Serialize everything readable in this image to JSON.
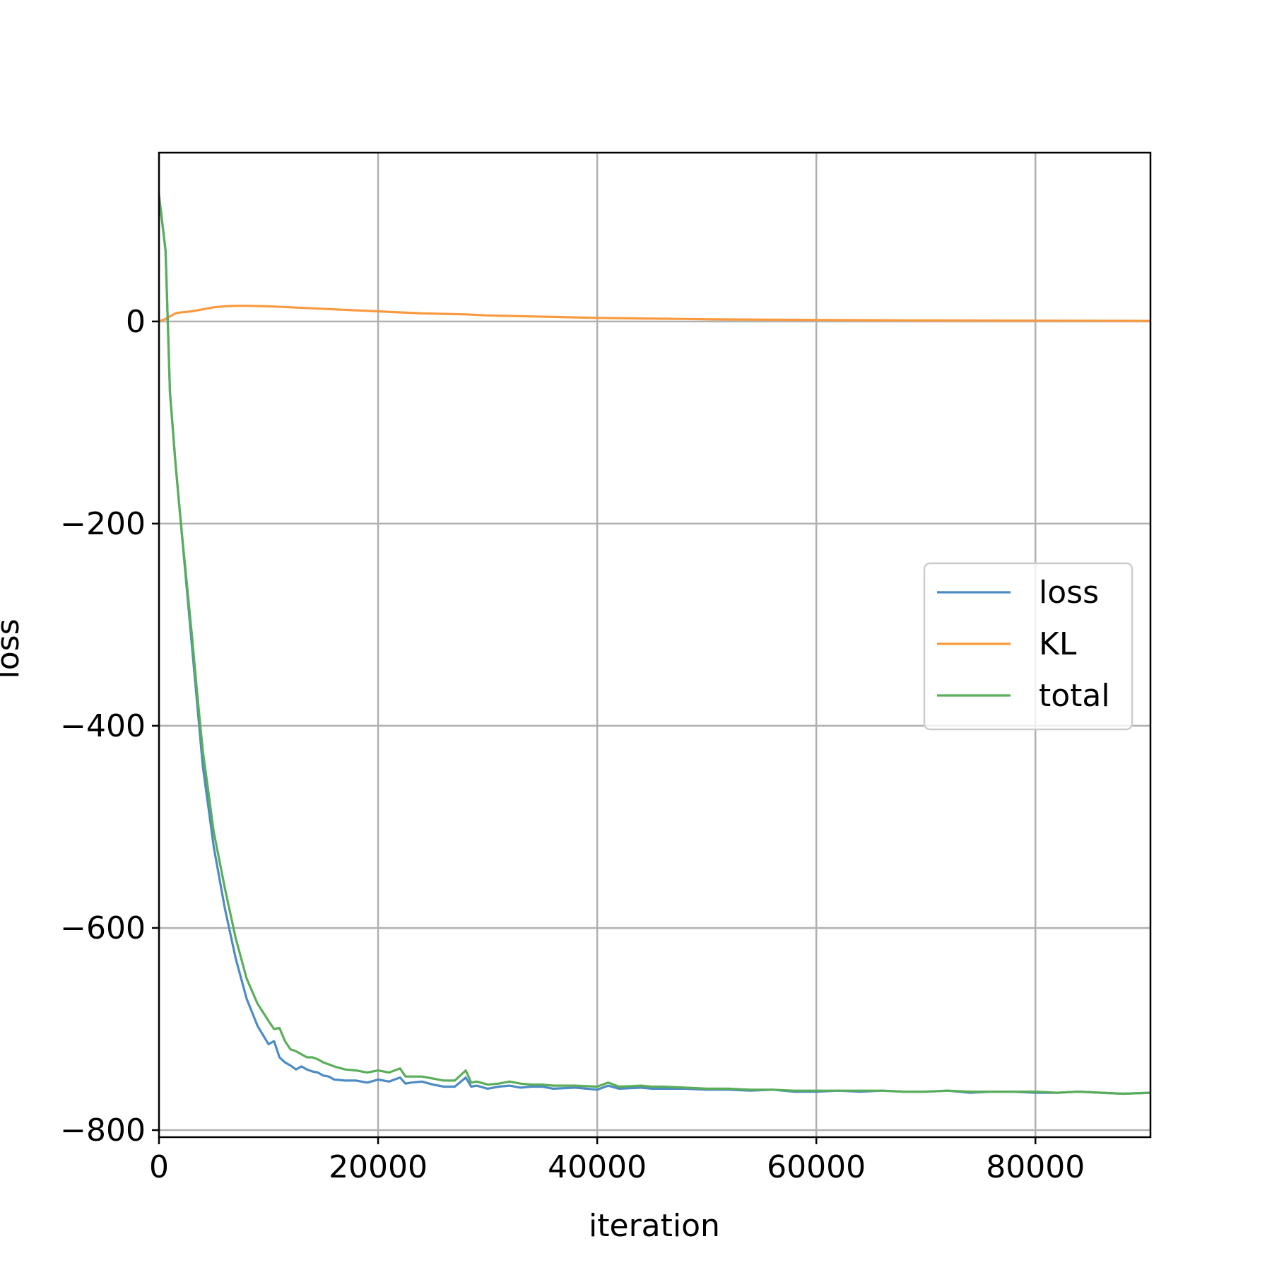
{
  "chart_data": {
    "type": "line",
    "title": "",
    "xlabel": "iteration",
    "ylabel": "loss",
    "xlim": [
      0,
      90500
    ],
    "ylim": [
      -807,
      167
    ],
    "xticks": [
      0,
      20000,
      40000,
      60000,
      80000
    ],
    "yticks": [
      0,
      -200,
      -400,
      -600,
      -800
    ],
    "xtick_labels": [
      "0",
      "20000",
      "40000",
      "60000",
      "80000"
    ],
    "ytick_labels": [
      "0",
      "−200",
      "−400",
      "−600",
      "−800"
    ],
    "grid": true,
    "legend_position": "center-right",
    "series": [
      {
        "name": "loss",
        "color": "#4c8bc3",
        "x": [
          0,
          600,
          1000,
          1500,
          2000,
          2500,
          3000,
          3500,
          4000,
          4500,
          5000,
          6000,
          7000,
          8000,
          9000,
          10000,
          10500,
          11000,
          11500,
          12000,
          12500,
          13000,
          13500,
          14000,
          14500,
          15000,
          15500,
          16000,
          17000,
          18000,
          19000,
          20000,
          21000,
          22000,
          22500,
          23000,
          24000,
          25000,
          26000,
          27000,
          28000,
          28500,
          29000,
          30000,
          31000,
          32000,
          33000,
          34000,
          35000,
          36000,
          38000,
          40000,
          41000,
          42000,
          44000,
          45000,
          46000,
          48000,
          50000,
          52000,
          54000,
          56000,
          58000,
          60000,
          62000,
          64000,
          66000,
          68000,
          70000,
          72000,
          74000,
          76000,
          78000,
          80000,
          82000,
          84000,
          86000,
          88000,
          90500
        ],
        "values": [
          125,
          70,
          -70,
          -140,
          -200,
          -260,
          -320,
          -380,
          -440,
          -480,
          -520,
          -580,
          -630,
          -670,
          -697,
          -715,
          -712,
          -728,
          -733,
          -736,
          -740,
          -737,
          -740,
          -742,
          -743,
          -746,
          -747,
          -750,
          -751,
          -751,
          -753,
          -750,
          -752,
          -748,
          -754,
          -753,
          -752,
          -755,
          -757,
          -757,
          -748,
          -757,
          -756,
          -759,
          -757,
          -756,
          -758,
          -757,
          -757,
          -759,
          -758,
          -760,
          -756,
          -759,
          -758,
          -759,
          -759,
          -759,
          -760,
          -760,
          -761,
          -760,
          -762,
          -762,
          -761,
          -762,
          -761,
          -762,
          -762,
          -761,
          -763,
          -762,
          -762,
          -763,
          -763,
          -762,
          -763,
          -764,
          -763
        ]
      },
      {
        "name": "KL",
        "color": "#f99a40",
        "x": [
          0,
          500,
          1000,
          1500,
          2000,
          3000,
          4000,
          5000,
          6000,
          7000,
          8000,
          10000,
          12000,
          14000,
          16000,
          18000,
          20000,
          22000,
          24000,
          26000,
          28000,
          30000,
          32000,
          34000,
          36000,
          38000,
          40000,
          44000,
          48000,
          52000,
          56000,
          60000,
          64000,
          68000,
          72000,
          76000,
          80000,
          84000,
          88000,
          90500
        ],
        "values": [
          0,
          2,
          5,
          8,
          9,
          10,
          12,
          14,
          15,
          15.5,
          15.5,
          15,
          14,
          13,
          12,
          11,
          10,
          9,
          8,
          7.5,
          7,
          6,
          5.5,
          5,
          4.5,
          4,
          3.5,
          3,
          2.5,
          2,
          1.8,
          1.5,
          1.3,
          1.1,
          1,
          0.9,
          0.8,
          0.7,
          0.6,
          0.5
        ]
      },
      {
        "name": "total",
        "color": "#5aae5a",
        "x": [
          0,
          600,
          1000,
          1500,
          2000,
          2500,
          3000,
          3500,
          4000,
          4500,
          5000,
          6000,
          7000,
          8000,
          9000,
          10000,
          10500,
          11000,
          11500,
          12000,
          12500,
          13000,
          13500,
          14000,
          14500,
          15000,
          15500,
          16000,
          17000,
          18000,
          19000,
          20000,
          21000,
          22000,
          22500,
          23000,
          24000,
          25000,
          26000,
          27000,
          28000,
          28500,
          29000,
          30000,
          31000,
          32000,
          33000,
          34000,
          35000,
          36000,
          38000,
          40000,
          41000,
          42000,
          44000,
          45000,
          46000,
          48000,
          50000,
          52000,
          54000,
          56000,
          58000,
          60000,
          62000,
          64000,
          66000,
          68000,
          70000,
          72000,
          74000,
          76000,
          78000,
          80000,
          82000,
          84000,
          86000,
          88000,
          90500
        ],
        "values": [
          125,
          70,
          -70,
          -140,
          -200,
          -255,
          -310,
          -370,
          -425,
          -465,
          -505,
          -560,
          -610,
          -650,
          -675,
          -692,
          -700,
          -699,
          -712,
          -720,
          -722,
          -725,
          -728,
          -728,
          -730,
          -733,
          -735,
          -737,
          -740,
          -741,
          -743,
          -741,
          -743,
          -739,
          -747,
          -747,
          -747,
          -749,
          -751,
          -751,
          -741,
          -753,
          -752,
          -755,
          -754,
          -752,
          -754,
          -755,
          -755,
          -756,
          -756,
          -757,
          -753,
          -757,
          -756,
          -757,
          -757,
          -758,
          -759,
          -759,
          -760,
          -760,
          -761,
          -761,
          -761,
          -761,
          -761,
          -762,
          -762,
          -761,
          -762,
          -762,
          -762,
          -762,
          -763,
          -762,
          -763,
          -764,
          -763
        ]
      }
    ]
  }
}
